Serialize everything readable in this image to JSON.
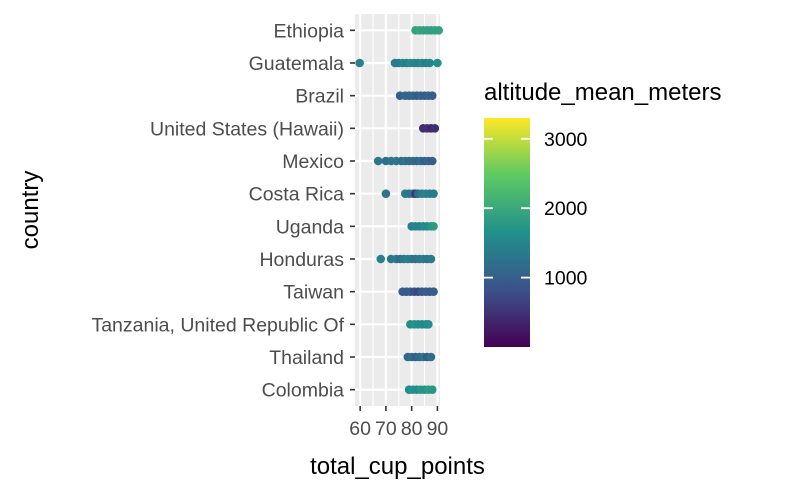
{
  "chart_data": {
    "type": "scatter",
    "title": "",
    "xlabel": "total_cup_points",
    "ylabel": "country",
    "xlim": [
      58,
      91
    ],
    "x_ticks": [
      60,
      70,
      80,
      90
    ],
    "x_tick_labels": [
      "60",
      "70",
      "80",
      "90"
    ],
    "grid": true,
    "legend_position": "right",
    "color_scale": {
      "name": "altitude_mean_meters",
      "palette": "viridis",
      "min": 0,
      "max": 3300,
      "ticks": [
        1000,
        2000,
        3000
      ],
      "tick_labels": [
        "1000",
        "2000",
        "3000"
      ],
      "stops": [
        "#440154",
        "#3b528b",
        "#21908c",
        "#5dc963",
        "#fde725"
      ]
    },
    "categories": [
      "Colombia",
      "Thailand",
      "Tanzania, United Republic Of",
      "Taiwan",
      "Honduras",
      "Uganda",
      "Costa Rica",
      "Mexico",
      "United States (Hawaii)",
      "Brazil",
      "Guatemala",
      "Ethiopia"
    ],
    "points": [
      {
        "country": "Ethiopia",
        "x": 81.5,
        "altitude": 1900
      },
      {
        "country": "Ethiopia",
        "x": 83,
        "altitude": 1950
      },
      {
        "country": "Ethiopia",
        "x": 84.5,
        "altitude": 1900
      },
      {
        "country": "Ethiopia",
        "x": 86,
        "altitude": 1900
      },
      {
        "country": "Ethiopia",
        "x": 87.5,
        "altitude": 1850
      },
      {
        "country": "Ethiopia",
        "x": 89,
        "altitude": 1900
      },
      {
        "country": "Ethiopia",
        "x": 90.5,
        "altitude": 1900
      },
      {
        "country": "Guatemala",
        "x": 59.8,
        "altitude": 1450
      },
      {
        "country": "Guatemala",
        "x": 73.5,
        "altitude": 1400
      },
      {
        "country": "Guatemala",
        "x": 75,
        "altitude": 1350
      },
      {
        "country": "Guatemala",
        "x": 76.5,
        "altitude": 1500
      },
      {
        "country": "Guatemala",
        "x": 78,
        "altitude": 1400
      },
      {
        "country": "Guatemala",
        "x": 79.5,
        "altitude": 1600
      },
      {
        "country": "Guatemala",
        "x": 81,
        "altitude": 1500
      },
      {
        "country": "Guatemala",
        "x": 82.5,
        "altitude": 1450
      },
      {
        "country": "Guatemala",
        "x": 84,
        "altitude": 1550
      },
      {
        "country": "Guatemala",
        "x": 85.5,
        "altitude": 1400
      },
      {
        "country": "Guatemala",
        "x": 87,
        "altitude": 1500
      },
      {
        "country": "Guatemala",
        "x": 90,
        "altitude": 1650
      },
      {
        "country": "Brazil",
        "x": 75.5,
        "altitude": 1000
      },
      {
        "country": "Brazil",
        "x": 77.5,
        "altitude": 1100
      },
      {
        "country": "Brazil",
        "x": 79,
        "altitude": 1050
      },
      {
        "country": "Brazil",
        "x": 80.5,
        "altitude": 1100
      },
      {
        "country": "Brazil",
        "x": 82,
        "altitude": 1000
      },
      {
        "country": "Brazil",
        "x": 83.5,
        "altitude": 1050
      },
      {
        "country": "Brazil",
        "x": 85,
        "altitude": 1000
      },
      {
        "country": "Brazil",
        "x": 86.5,
        "altitude": 1050
      },
      {
        "country": "Brazil",
        "x": 88,
        "altitude": 1000
      },
      {
        "country": "United States (Hawaii)",
        "x": 84.5,
        "altitude": 450
      },
      {
        "country": "United States (Hawaii)",
        "x": 86,
        "altitude": 500
      },
      {
        "country": "United States (Hawaii)",
        "x": 87.5,
        "altitude": 400
      },
      {
        "country": "United States (Hawaii)",
        "x": 89,
        "altitude": 450
      },
      {
        "country": "Mexico",
        "x": 67,
        "altitude": 1300
      },
      {
        "country": "Mexico",
        "x": 70,
        "altitude": 1200
      },
      {
        "country": "Mexico",
        "x": 72,
        "altitude": 1250
      },
      {
        "country": "Mexico",
        "x": 74,
        "altitude": 1300
      },
      {
        "country": "Mexico",
        "x": 76,
        "altitude": 1200
      },
      {
        "country": "Mexico",
        "x": 77.5,
        "altitude": 1250
      },
      {
        "country": "Mexico",
        "x": 79,
        "altitude": 1150
      },
      {
        "country": "Mexico",
        "x": 80.5,
        "altitude": 1200
      },
      {
        "country": "Mexico",
        "x": 82,
        "altitude": 1100
      },
      {
        "country": "Mexico",
        "x": 83.5,
        "altitude": 1200
      },
      {
        "country": "Mexico",
        "x": 85,
        "altitude": 1000
      },
      {
        "country": "Mexico",
        "x": 86.5,
        "altitude": 1100
      },
      {
        "country": "Mexico",
        "x": 88,
        "altitude": 1000
      },
      {
        "country": "Costa Rica",
        "x": 70,
        "altitude": 1250
      },
      {
        "country": "Costa Rica",
        "x": 77.5,
        "altitude": 1400
      },
      {
        "country": "Costa Rica",
        "x": 79,
        "altitude": 1300
      },
      {
        "country": "Costa Rica",
        "x": 80.5,
        "altitude": 1350
      },
      {
        "country": "Costa Rica",
        "x": 81.5,
        "altitude": 500
      },
      {
        "country": "Costa Rica",
        "x": 82.5,
        "altitude": 1200
      },
      {
        "country": "Costa Rica",
        "x": 84,
        "altitude": 1400
      },
      {
        "country": "Costa Rica",
        "x": 85.5,
        "altitude": 1500
      },
      {
        "country": "Costa Rica",
        "x": 87,
        "altitude": 1400
      },
      {
        "country": "Costa Rica",
        "x": 88.5,
        "altitude": 1350
      },
      {
        "country": "Uganda",
        "x": 80,
        "altitude": 1400
      },
      {
        "country": "Uganda",
        "x": 81.5,
        "altitude": 1500
      },
      {
        "country": "Uganda",
        "x": 83,
        "altitude": 1450
      },
      {
        "country": "Uganda",
        "x": 84.5,
        "altitude": 1550
      },
      {
        "country": "Uganda",
        "x": 86,
        "altitude": 1600
      },
      {
        "country": "Uganda",
        "x": 87.5,
        "altitude": 1700
      },
      {
        "country": "Uganda",
        "x": 88.5,
        "altitude": 1800
      },
      {
        "country": "Honduras",
        "x": 68,
        "altitude": 1450
      },
      {
        "country": "Honduras",
        "x": 72,
        "altitude": 1300
      },
      {
        "country": "Honduras",
        "x": 74,
        "altitude": 1350
      },
      {
        "country": "Honduras",
        "x": 75.5,
        "altitude": 1200
      },
      {
        "country": "Honduras",
        "x": 77,
        "altitude": 1300
      },
      {
        "country": "Honduras",
        "x": 78.5,
        "altitude": 1400
      },
      {
        "country": "Honduras",
        "x": 80,
        "altitude": 1300
      },
      {
        "country": "Honduras",
        "x": 81.5,
        "altitude": 1250
      },
      {
        "country": "Honduras",
        "x": 83,
        "altitude": 1350
      },
      {
        "country": "Honduras",
        "x": 84.5,
        "altitude": 1400
      },
      {
        "country": "Honduras",
        "x": 86,
        "altitude": 1300
      },
      {
        "country": "Honduras",
        "x": 87.5,
        "altitude": 1350
      },
      {
        "country": "Taiwan",
        "x": 76.5,
        "altitude": 1000
      },
      {
        "country": "Taiwan",
        "x": 78,
        "altitude": 900
      },
      {
        "country": "Taiwan",
        "x": 79.5,
        "altitude": 1000
      },
      {
        "country": "Taiwan",
        "x": 81,
        "altitude": 800
      },
      {
        "country": "Taiwan",
        "x": 82.5,
        "altitude": 700
      },
      {
        "country": "Taiwan",
        "x": 84,
        "altitude": 900
      },
      {
        "country": "Taiwan",
        "x": 85.5,
        "altitude": 1000
      },
      {
        "country": "Taiwan",
        "x": 87,
        "altitude": 900
      },
      {
        "country": "Taiwan",
        "x": 88.5,
        "altitude": 1000
      },
      {
        "country": "Tanzania, United Republic Of",
        "x": 79.5,
        "altitude": 1600
      },
      {
        "country": "Tanzania, United Republic Of",
        "x": 81,
        "altitude": 1700
      },
      {
        "country": "Tanzania, United Republic Of",
        "x": 82.5,
        "altitude": 1650
      },
      {
        "country": "Tanzania, United Republic Of",
        "x": 84,
        "altitude": 1600
      },
      {
        "country": "Tanzania, United Republic Of",
        "x": 85.5,
        "altitude": 1550
      },
      {
        "country": "Tanzania, United Republic Of",
        "x": 86.5,
        "altitude": 1650
      },
      {
        "country": "Thailand",
        "x": 78.5,
        "altitude": 1100
      },
      {
        "country": "Thailand",
        "x": 80,
        "altitude": 1200
      },
      {
        "country": "Thailand",
        "x": 81.5,
        "altitude": 1000
      },
      {
        "country": "Thailand",
        "x": 83,
        "altitude": 1150
      },
      {
        "country": "Thailand",
        "x": 84.5,
        "altitude": 1300
      },
      {
        "country": "Thailand",
        "x": 86,
        "altitude": 900
      },
      {
        "country": "Thailand",
        "x": 87.5,
        "altitude": 1200
      },
      {
        "country": "Colombia",
        "x": 79,
        "altitude": 1600
      },
      {
        "country": "Colombia",
        "x": 80.5,
        "altitude": 1700
      },
      {
        "country": "Colombia",
        "x": 82,
        "altitude": 1650
      },
      {
        "country": "Colombia",
        "x": 83.5,
        "altitude": 1750
      },
      {
        "country": "Colombia",
        "x": 85,
        "altitude": 1700
      },
      {
        "country": "Colombia",
        "x": 86.5,
        "altitude": 1800
      },
      {
        "country": "Colombia",
        "x": 88,
        "altitude": 1750
      }
    ]
  }
}
